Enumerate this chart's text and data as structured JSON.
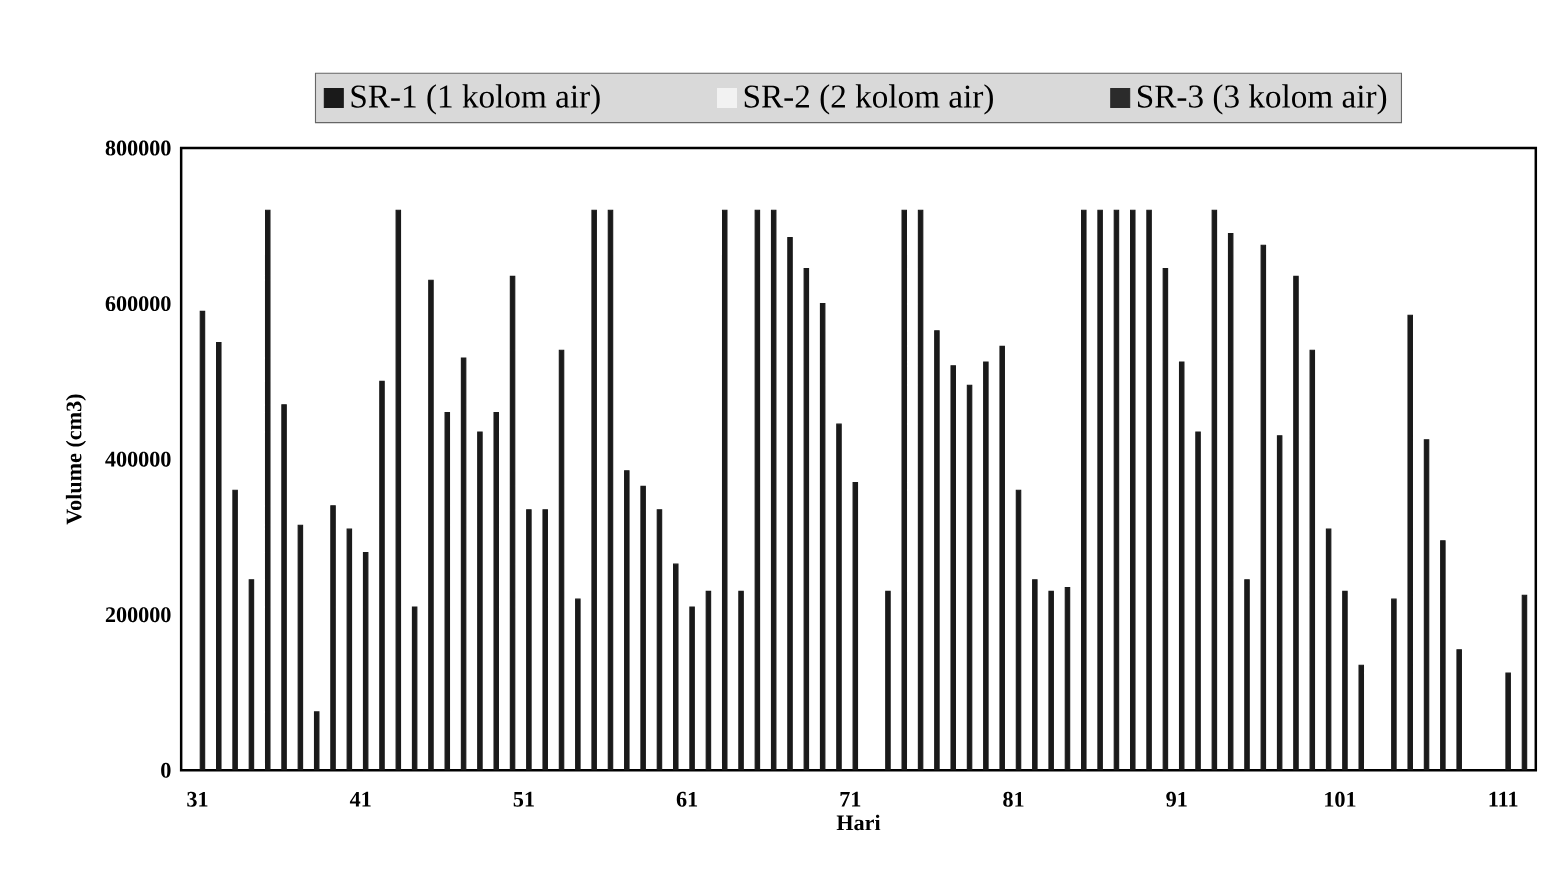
{
  "chart_data": {
    "type": "bar",
    "xlabel": "Hari",
    "ylabel": "Volume (cm3)",
    "categories": [
      "31",
      null,
      null,
      null,
      null,
      null,
      null,
      null,
      null,
      null,
      "41",
      null,
      null,
      null,
      null,
      null,
      null,
      null,
      null,
      null,
      "51",
      null,
      null,
      null,
      null,
      null,
      null,
      null,
      null,
      null,
      "61",
      null,
      null,
      null,
      null,
      null,
      null,
      null,
      null,
      null,
      "71",
      null,
      null,
      null,
      null,
      null,
      null,
      null,
      null,
      null,
      "81",
      null,
      null,
      null,
      null,
      null,
      null,
      null,
      null,
      null,
      "91",
      null,
      null,
      null,
      null,
      null,
      null,
      null,
      null,
      null,
      "101",
      null,
      null,
      null,
      null,
      null,
      null,
      null,
      null,
      null,
      "111",
      null
    ],
    "series": [
      {
        "name": "SR-1 (1 kolom air)",
        "color": "#1a1a1a",
        "values": [
          590000,
          550000,
          360000,
          245000,
          720000,
          470000,
          315000,
          75000,
          340000,
          310000,
          280000,
          500000,
          720000,
          210000,
          630000,
          460000,
          530000,
          435000,
          460000,
          635000,
          335000,
          335000,
          540000,
          220000,
          720000,
          720000,
          385000,
          365000,
          335000,
          265000,
          210000,
          230000,
          720000,
          230000,
          720000,
          720000,
          685000,
          645000,
          600000,
          445000,
          370000,
          null,
          230000,
          720000,
          720000,
          565000,
          520000,
          495000,
          525000,
          545000,
          360000,
          245000,
          230000,
          235000,
          720000,
          720000,
          720000,
          720000,
          720000,
          645000,
          525000,
          435000,
          720000,
          690000,
          245000,
          675000,
          430000,
          635000,
          540000,
          310000,
          230000,
          135000,
          null,
          220000,
          585000,
          425000,
          295000,
          155000,
          null,
          null,
          125000,
          225000
        ]
      },
      {
        "name": "SR-2 (2 kolom air)",
        "color": "#f2f2f2",
        "values": [
          null,
          null,
          null,
          null,
          null,
          null,
          null,
          null,
          null,
          null,
          null,
          null,
          null,
          null,
          null,
          null,
          null,
          null,
          null,
          null,
          null,
          null,
          null,
          null,
          null,
          null,
          null,
          null,
          null,
          null,
          null,
          null,
          null,
          null,
          null,
          null,
          null,
          null,
          null,
          null,
          null,
          null,
          null,
          null,
          null,
          null,
          null,
          null,
          null,
          null,
          null,
          null,
          null,
          null,
          null,
          null,
          null,
          null,
          null,
          null,
          null,
          null,
          null,
          null,
          null,
          null,
          null,
          null,
          null,
          null,
          null,
          null,
          null,
          null,
          null,
          null,
          null,
          null,
          null,
          null,
          null,
          null
        ]
      },
      {
        "name": "SR-3 (3 kolom air)",
        "color": "#2b2b2b",
        "values": [
          null,
          null,
          null,
          null,
          null,
          null,
          null,
          null,
          null,
          null,
          null,
          null,
          null,
          null,
          null,
          null,
          null,
          null,
          null,
          null,
          null,
          null,
          null,
          null,
          null,
          null,
          null,
          null,
          null,
          null,
          null,
          null,
          null,
          null,
          null,
          null,
          null,
          null,
          null,
          null,
          null,
          null,
          null,
          null,
          null,
          null,
          null,
          null,
          null,
          null,
          null,
          null,
          null,
          null,
          null,
          null,
          null,
          null,
          null,
          null,
          null,
          null,
          null,
          null,
          null,
          null,
          null,
          null,
          null,
          null,
          null,
          null,
          null,
          null,
          null,
          null,
          null,
          null,
          null,
          null,
          null,
          null
        ]
      }
    ],
    "ylim": [
      0,
      800000
    ],
    "yticks": [
      0,
      200000,
      400000,
      600000,
      800000
    ],
    "legend": "top"
  }
}
